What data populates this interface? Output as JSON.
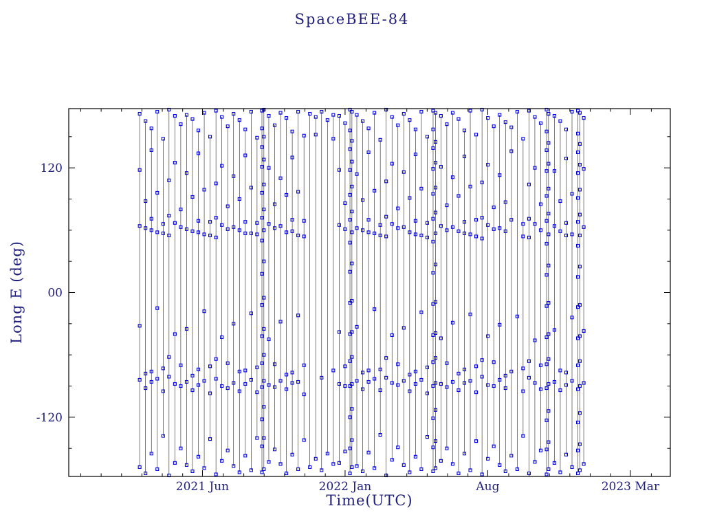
{
  "page": {
    "background": "#ffffff"
  },
  "chart": {
    "title": "SpaceBEE-84",
    "xlabel": "Time(UTC)",
    "ylabel": "Long E (deg)",
    "frame_color": "#000000",
    "text_color": "#20207a",
    "marker_color": "#0000dd",
    "line_color": "#202020"
  },
  "chart_data": {
    "type": "line",
    "marker": "open-square",
    "title": "SpaceBEE-84",
    "xlabel": "Time(UTC)",
    "ylabel": "Long E (deg)",
    "series_name": "SpaceBEE-84 longitude east",
    "grid": false,
    "legend": "none",
    "xlim_decimal_year": [
      2020.87,
      2023.33
    ],
    "ylim": [
      -177,
      177
    ],
    "x_ticks": [
      {
        "value": 2021.4167,
        "label": "2021 Jun"
      },
      {
        "value": 2022.0,
        "label": "2022 Jan"
      },
      {
        "value": 2022.5833,
        "label": "Aug"
      },
      {
        "value": 2023.1667,
        "label": "2023 Mar"
      }
    ],
    "y_ticks": [
      {
        "value": 120,
        "label": "120"
      },
      {
        "value": 0,
        "label": "00"
      },
      {
        "value": -120,
        "label": "-120"
      }
    ],
    "x_minor_tick_step_years": 0.08333,
    "y_minor_tick_step": 30,
    "columns": [
      [
        2021.16,
        [
          172,
          118,
          64,
          -32,
          -84,
          -168
        ]
      ],
      [
        2021.184,
        [
          165,
          88,
          62,
          -78,
          -92,
          -174
        ]
      ],
      [
        2021.208,
        [
          158,
          137,
          71,
          60,
          -76,
          -86,
          -155
        ]
      ],
      [
        2021.232,
        [
          174,
          96,
          58,
          -15,
          -83,
          -170
        ]
      ],
      [
        2021.256,
        [
          148,
          66,
          57,
          -73,
          -95,
          -138
        ]
      ],
      [
        2021.28,
        [
          176,
          108,
          74,
          55,
          -62,
          -81,
          -176
        ]
      ],
      [
        2021.304,
        [
          170,
          125,
          67,
          -40,
          -88,
          -164
        ]
      ],
      [
        2021.328,
        [
          162,
          80,
          63,
          -70,
          -90,
          -150
        ]
      ],
      [
        2021.352,
        [
          171,
          115,
          61,
          -35,
          -86,
          -166
        ]
      ],
      [
        2021.376,
        [
          167,
          92,
          59,
          -80,
          -94,
          -172
        ]
      ],
      [
        2021.4,
        [
          156,
          134,
          69,
          58,
          -74,
          -89,
          -158
        ]
      ],
      [
        2021.424,
        [
          173,
          99,
          56,
          -18,
          -85,
          -169
        ]
      ],
      [
        2021.448,
        [
          150,
          68,
          55,
          -71,
          -97,
          -141
        ]
      ],
      [
        2021.472,
        [
          175,
          105,
          72,
          53,
          -64,
          -83,
          -175
        ]
      ],
      [
        2021.496,
        [
          169,
          122,
          65,
          -43,
          -90,
          -162
        ]
      ],
      [
        2021.52,
        [
          160,
          83,
          61,
          -68,
          -92,
          -152
        ]
      ],
      [
        2021.544,
        [
          172,
          112,
          63,
          -30,
          -87,
          -167
        ]
      ],
      [
        2021.568,
        [
          166,
          90,
          60,
          -76,
          -95,
          -173
        ]
      ],
      [
        2021.592,
        [
          157,
          132,
          68,
          57,
          -75,
          -88,
          -157
        ]
      ],
      [
        2021.616,
        [
          174,
          101,
          57,
          -20,
          -84,
          -171
        ]
      ],
      [
        2021.64,
        [
          149,
          67,
          56,
          -72,
          -96,
          -140
        ]
      ],
      [
        2021.66,
        [
          175,
          158,
          140,
          121,
          96,
          72,
          50,
          18,
          -12,
          -42,
          -68,
          -91,
          -122,
          -148,
          -173
        ]
      ],
      [
        2021.668,
        [
          176,
          150,
          128,
          104,
          80,
          60,
          30,
          -5,
          -35,
          -60,
          -85,
          -110,
          -140,
          -170
        ]
      ],
      [
        2021.688,
        [
          170,
          120,
          66,
          -45,
          -89,
          -163
        ]
      ],
      [
        2021.712,
        [
          161,
          85,
          62,
          -69,
          -91,
          -151
        ]
      ],
      [
        2021.736,
        [
          173,
          110,
          64,
          -28,
          -85,
          -165
        ]
      ],
      [
        2021.76,
        [
          168,
          94,
          58,
          -79,
          -93,
          -174
        ]
      ],
      [
        2021.784,
        [
          155,
          130,
          70,
          59,
          -77,
          -87,
          -156
        ]
      ],
      [
        2021.808,
        [
          174,
          97,
          55,
          -22,
          -86,
          -170
        ]
      ],
      [
        2021.832,
        [
          151,
          69,
          54,
          -70,
          -98,
          -142
        ]
      ],
      [
        2021.856,
        [
          172,
          -168
        ]
      ],
      [
        2021.88,
        [
          169,
          152,
          -160
        ]
      ],
      [
        2021.904,
        [
          174,
          -82,
          -171
        ]
      ],
      [
        2021.928,
        [
          166,
          -155
        ]
      ],
      [
        2021.952,
        [
          171,
          148,
          -75,
          -165
        ]
      ],
      [
        2021.976,
        [
          170,
          118,
          65,
          -38,
          -88,
          -164
        ]
      ],
      [
        2022.0,
        [
          163,
          86,
          61,
          -71,
          -90,
          -153
        ]
      ],
      [
        2022.02,
        [
          176,
          156,
          138,
          118,
          94,
          70,
          48,
          20,
          -10,
          -40,
          -66,
          -90,
          -120,
          -150,
          -174
        ]
      ],
      [
        2022.028,
        [
          174,
          146,
          126,
          102,
          78,
          58,
          28,
          -8,
          -38,
          -62,
          -88,
          -112,
          -142,
          -168
        ]
      ],
      [
        2022.048,
        [
          171,
          114,
          62,
          -33,
          -85,
          -167
        ]
      ],
      [
        2022.072,
        [
          165,
          89,
          60,
          -77,
          -93,
          -172
        ]
      ],
      [
        2022.096,
        [
          158,
          135,
          70,
          58,
          -75,
          -86,
          -154
        ]
      ],
      [
        2022.12,
        [
          173,
          98,
          57,
          -16,
          -83,
          -169
        ]
      ],
      [
        2022.144,
        [
          147,
          65,
          55,
          -74,
          -94,
          -137
        ]
      ],
      [
        2022.168,
        [
          176,
          107,
          73,
          54,
          -63,
          -82,
          -176
        ]
      ],
      [
        2022.192,
        [
          169,
          124,
          66,
          -41,
          -87,
          -161
        ]
      ],
      [
        2022.216,
        [
          161,
          81,
          62,
          -69,
          -89,
          -149
        ]
      ],
      [
        2022.24,
        [
          172,
          116,
          63,
          -34,
          -85,
          -166
        ]
      ],
      [
        2022.264,
        [
          166,
          91,
          58,
          -79,
          -95,
          -173
        ]
      ],
      [
        2022.288,
        [
          157,
          133,
          69,
          56,
          -76,
          -88,
          -158
        ]
      ],
      [
        2022.312,
        [
          174,
          100,
          55,
          -19,
          -84,
          -170
        ]
      ],
      [
        2022.336,
        [
          150,
          67,
          53,
          -72,
          -97,
          -139
        ]
      ],
      [
        2022.36,
        [
          175,
          157,
          139,
          119,
          95,
          71,
          49,
          19,
          -11,
          -41,
          -67,
          -90,
          -121,
          -149,
          -172
        ]
      ],
      [
        2022.37,
        [
          173,
          145,
          125,
          101,
          77,
          57,
          27,
          -9,
          -39,
          -63,
          -87,
          -113,
          -143,
          -169
        ]
      ],
      [
        2022.392,
        [
          170,
          121,
          64,
          -44,
          -88,
          -162
        ]
      ],
      [
        2022.416,
        [
          162,
          84,
          60,
          -68,
          -91,
          -150
        ]
      ],
      [
        2022.44,
        [
          173,
          111,
          63,
          -29,
          -86,
          -165
        ]
      ],
      [
        2022.464,
        [
          167,
          93,
          59,
          -78,
          -94,
          -174
        ]
      ],
      [
        2022.488,
        [
          156,
          131,
          68,
          57,
          -74,
          -87,
          -155
        ]
      ],
      [
        2022.512,
        [
          175,
          102,
          56,
          -21,
          -85,
          -171
        ]
      ],
      [
        2022.536,
        [
          152,
          70,
          54,
          -71,
          -96,
          -143
        ]
      ],
      [
        2022.56,
        [
          176,
          106,
          72,
          52,
          -65,
          -81,
          -175
        ]
      ],
      [
        2022.584,
        [
          168,
          123,
          65,
          -42,
          -89,
          -160
        ]
      ],
      [
        2022.608,
        [
          160,
          82,
          61,
          -67,
          -90,
          -148
        ]
      ],
      [
        2022.632,
        [
          171,
          113,
          62,
          -31,
          -84,
          -166
        ]
      ],
      [
        2022.656,
        [
          164,
          87,
          59,
          -80,
          -92,
          -172
        ]
      ],
      [
        2022.68,
        [
          159,
          136,
          70,
          -76,
          -157
        ]
      ],
      [
        2022.704,
        [
          174,
          -23,
          -170
        ]
      ],
      [
        2022.728,
        [
          148,
          66,
          54,
          -73,
          -95,
          -138
        ]
      ],
      [
        2022.752,
        [
          175,
          104,
          71,
          53,
          -66,
          -82,
          -174
        ]
      ],
      [
        2022.776,
        [
          169,
          120,
          66,
          -46,
          -87,
          -163
        ]
      ],
      [
        2022.8,
        [
          163,
          85,
          60,
          -70,
          -93,
          -152
        ]
      ],
      [
        2022.824,
        [
          176,
          155,
          137,
          117,
          93,
          69,
          47,
          17,
          -13,
          -43,
          -69,
          -92,
          -123,
          -151,
          -175
        ]
      ],
      [
        2022.832,
        [
          172,
          144,
          124,
          100,
          76,
          56,
          26,
          -10,
          -40,
          -64,
          -88,
          -114,
          -144,
          -170
        ]
      ],
      [
        2022.856,
        [
          170,
          117,
          64,
          -36,
          -86,
          -164
        ]
      ],
      [
        2022.88,
        [
          165,
          88,
          59,
          -75,
          -94,
          -173
        ]
      ],
      [
        2022.904,
        [
          157,
          129,
          67,
          55,
          -77,
          -89,
          -156
        ]
      ],
      [
        2022.928,
        [
          174,
          95,
          56,
          -24,
          -85,
          -168
        ]
      ],
      [
        2022.952,
        [
          175,
          153,
          135,
          115,
          91,
          68,
          45,
          15,
          -14,
          -44,
          -70,
          -93,
          -125,
          -152,
          -174
        ]
      ],
      [
        2022.96,
        [
          173,
          143,
          123,
          99,
          75,
          55,
          25,
          -12,
          -42,
          -66,
          -90,
          -116,
          -146,
          -171
        ]
      ],
      [
        2022.976,
        [
          168,
          119,
          63,
          -37,
          -87,
          -165
        ]
      ]
    ]
  }
}
